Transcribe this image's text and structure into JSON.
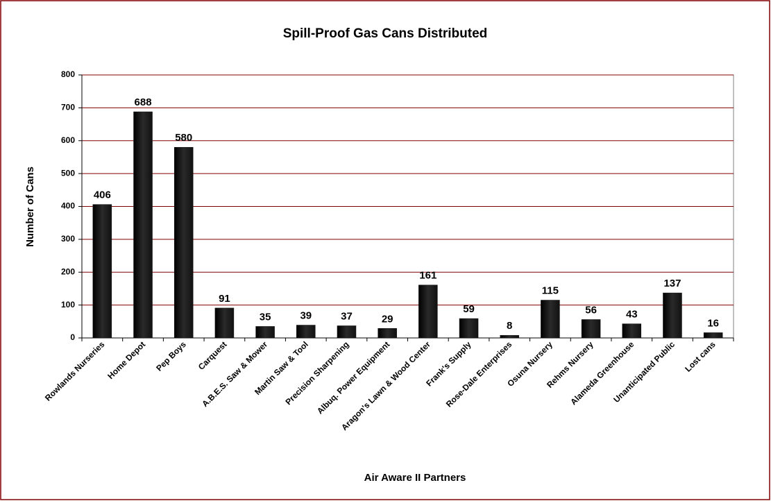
{
  "chart_data": {
    "type": "bar",
    "title": "Spill-Proof Gas Cans Distributed",
    "x_label": "Air Aware II Partners",
    "y_label": "Number of Cans",
    "categories": [
      "Rowlands Nurseries",
      "Home Depot",
      "Pep Boys",
      "Carquest",
      "A.B.E.S. Saw & Mower",
      "Martin Saw & Tool",
      "Precision Sharpening",
      "Albuq. Power Equipment",
      "Aragon's Lawn & Wood Center",
      "Frank's Supply",
      "Rose-Dale Enterprises",
      "Osuna Nursery",
      "Rehms Nursery",
      "Alameda Greenhouse",
      "Unanticipated Public",
      "Lost cans"
    ],
    "values": [
      406,
      688,
      580,
      91,
      35,
      39,
      37,
      29,
      161,
      59,
      8,
      115,
      56,
      43,
      137,
      16
    ],
    "color": "#111111",
    "ylim": [
      0,
      800
    ],
    "yticks": [
      0,
      100,
      200,
      300,
      400,
      500,
      600,
      700,
      800
    ],
    "grid": true
  }
}
